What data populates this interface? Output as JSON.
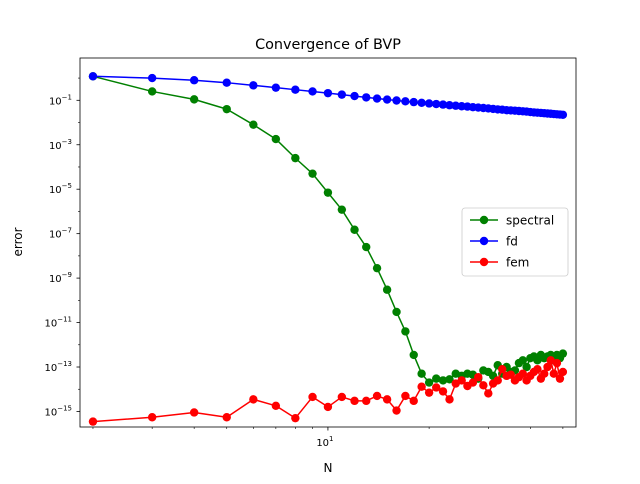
{
  "chart_data": {
    "type": "line",
    "title": "Convergence of BVP",
    "xlabel": "N",
    "ylabel": "error",
    "xscale": "log",
    "yscale": "log",
    "xlim": [
      1.83,
      54.7
    ],
    "ylim": [
      2e-16,
      8.0
    ],
    "grid": false,
    "legend": "center-right",
    "x_ticks": [
      {
        "value": 10,
        "label": "10",
        "exp": "1"
      }
    ],
    "y_ticks": [
      {
        "value": 1e-15,
        "label": "10",
        "exp": "−15"
      },
      {
        "value": 1e-13,
        "label": "10",
        "exp": "−13"
      },
      {
        "value": 1e-11,
        "label": "10",
        "exp": "−11"
      },
      {
        "value": 1e-09,
        "label": "10",
        "exp": "−9"
      },
      {
        "value": 1e-07,
        "label": "10",
        "exp": "−7"
      },
      {
        "value": 1e-05,
        "label": "10",
        "exp": "−5"
      },
      {
        "value": 0.001,
        "label": "10",
        "exp": "−3"
      },
      {
        "value": 0.1,
        "label": "10",
        "exp": "−1"
      }
    ],
    "x": [
      2,
      3,
      4,
      5,
      6,
      7,
      8,
      9,
      10,
      11,
      12,
      13,
      14,
      15,
      16,
      17,
      18,
      19,
      20,
      21,
      22,
      23,
      24,
      25,
      26,
      27,
      28,
      29,
      30,
      31,
      32,
      33,
      34,
      35,
      36,
      37,
      38,
      39,
      40,
      41,
      42,
      43,
      44,
      45,
      46,
      47,
      48,
      49,
      50
    ],
    "series": [
      {
        "name": "spectral",
        "color": "#008000",
        "values": [
          1.2,
          0.25,
          0.11,
          0.04,
          0.008,
          0.0018,
          0.00025,
          5e-05,
          7e-06,
          1.2e-06,
          1.5e-07,
          2.5e-08,
          2.8e-09,
          3e-10,
          3e-11,
          4e-12,
          3.5e-13,
          5e-14,
          2e-14,
          3e-14,
          2.5e-14,
          2.8e-14,
          5e-14,
          4e-14,
          5e-14,
          4.5e-14,
          3e-14,
          7e-14,
          6e-14,
          4e-14,
          1.2e-13,
          5e-14,
          1e-13,
          6e-14,
          7e-14,
          1.5e-13,
          2e-13,
          1e-13,
          2.5e-13,
          3e-13,
          2e-13,
          3.5e-13,
          2.5e-13,
          3e-13,
          3.5e-13,
          2e-13,
          3.5e-13,
          2.5e-13,
          4e-13
        ]
      },
      {
        "name": "fd",
        "color": "#0000ff",
        "values": [
          1.2,
          1.0,
          0.8,
          0.62,
          0.47,
          0.37,
          0.3,
          0.25,
          0.21,
          0.18,
          0.155,
          0.135,
          0.12,
          0.108,
          0.098,
          0.09,
          0.083,
          0.077,
          0.072,
          0.068,
          0.064,
          0.06,
          0.057,
          0.054,
          0.052,
          0.049,
          0.047,
          0.045,
          0.043,
          0.041,
          0.039,
          0.038,
          0.036,
          0.035,
          0.034,
          0.033,
          0.032,
          0.031,
          0.0295,
          0.0285,
          0.0278,
          0.027,
          0.0262,
          0.0255,
          0.0248,
          0.0241,
          0.0235,
          0.0229,
          0.0223
        ]
      },
      {
        "name": "fem",
        "color": "#ff0000",
        "values": [
          3.5e-16,
          5.5e-16,
          9e-16,
          5.5e-16,
          3.5e-15,
          1.8e-15,
          5e-16,
          4.5e-15,
          1.6e-15,
          4.5e-15,
          3e-15,
          3e-15,
          5e-15,
          3.5e-15,
          1.1e-15,
          5e-15,
          3e-15,
          1.3e-14,
          7e-15,
          1.2e-14,
          8e-15,
          3.5e-15,
          1.8e-14,
          2.5e-14,
          1.4e-14,
          2e-14,
          3.5e-14,
          1.5e-14,
          6.5e-15,
          1.8e-14,
          2.5e-14,
          8e-14,
          4e-14,
          4.5e-14,
          2.5e-14,
          3.5e-14,
          5e-14,
          2.5e-14,
          4e-14,
          6e-14,
          8e-14,
          3e-14,
          5e-14,
          1e-13,
          2e-13,
          5e-14,
          1.5e-13,
          3e-14,
          6e-14
        ]
      }
    ]
  }
}
